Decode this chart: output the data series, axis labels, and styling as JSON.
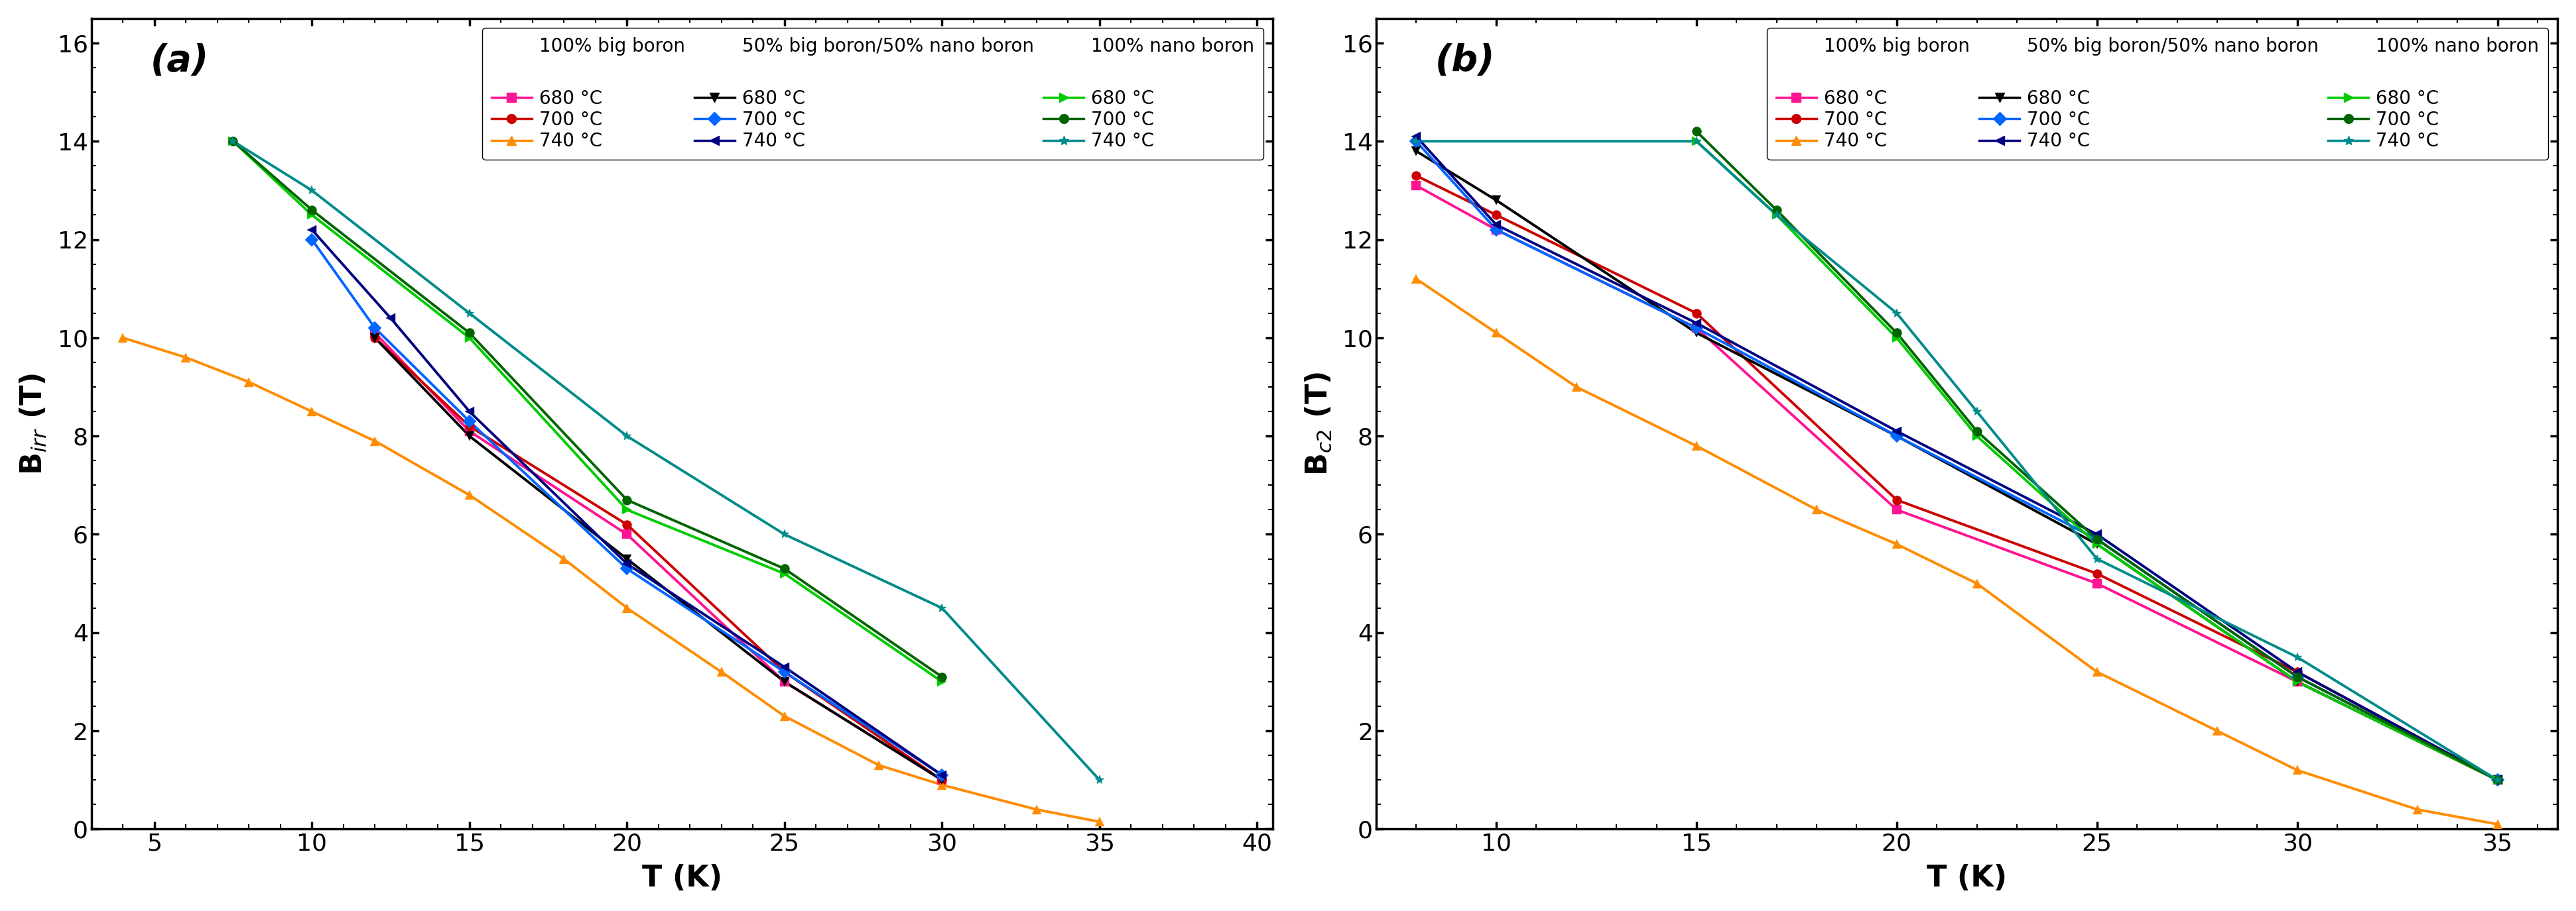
{
  "panel_a": {
    "ylabel": "B$_{irr}$ (T)",
    "xlabel": "T (K)",
    "xlim": [
      3.0,
      40.5
    ],
    "ylim": [
      0,
      16.5
    ],
    "xticks": [
      5,
      10,
      15,
      20,
      25,
      30,
      35,
      40
    ],
    "yticks": [
      0,
      2,
      4,
      6,
      8,
      10,
      12,
      14,
      16
    ],
    "label": "(a)",
    "series": [
      {
        "name": "big_680",
        "color": "#FF1493",
        "marker": "s",
        "T": [
          12.0,
          15.0,
          20.0,
          25.0,
          30.0
        ],
        "B": [
          10.1,
          8.1,
          6.0,
          3.0,
          1.0
        ]
      },
      {
        "name": "big_700",
        "color": "#CC0000",
        "marker": "o",
        "T": [
          12.0,
          15.0,
          20.0,
          25.0,
          30.0
        ],
        "B": [
          10.0,
          8.2,
          6.2,
          3.2,
          1.0
        ]
      },
      {
        "name": "big_740",
        "color": "#FF8C00",
        "marker": "^",
        "T": [
          4.0,
          6.0,
          8.0,
          10.0,
          12.0,
          15.0,
          18.0,
          20.0,
          23.0,
          25.0,
          28.0,
          30.0,
          33.0,
          35.0
        ],
        "B": [
          10.0,
          9.6,
          9.1,
          8.5,
          7.9,
          6.8,
          5.5,
          4.5,
          3.2,
          2.3,
          1.3,
          0.9,
          0.4,
          0.15
        ]
      },
      {
        "name": "mix_680",
        "color": "#000000",
        "marker": "v",
        "T": [
          12.0,
          15.0,
          20.0,
          25.0,
          30.0
        ],
        "B": [
          10.0,
          8.0,
          5.5,
          3.0,
          1.0
        ]
      },
      {
        "name": "mix_700",
        "color": "#0066FF",
        "marker": "D",
        "T": [
          10.0,
          12.0,
          15.0,
          20.0,
          25.0,
          30.0
        ],
        "B": [
          12.0,
          10.2,
          8.3,
          5.3,
          3.2,
          1.1
        ]
      },
      {
        "name": "mix_740",
        "color": "#000080",
        "marker": "<",
        "T": [
          10.0,
          12.5,
          15.0,
          20.0,
          25.0,
          30.0
        ],
        "B": [
          12.2,
          10.4,
          8.5,
          5.4,
          3.3,
          1.1
        ]
      },
      {
        "name": "nano_680",
        "color": "#00CC00",
        "marker": ">",
        "T": [
          7.5,
          10.0,
          15.0,
          20.0,
          25.0,
          30.0
        ],
        "B": [
          14.0,
          12.5,
          10.0,
          6.5,
          5.2,
          3.0
        ]
      },
      {
        "name": "nano_700",
        "color": "#006400",
        "marker": "o",
        "T": [
          7.5,
          10.0,
          15.0,
          20.0,
          25.0,
          30.0
        ],
        "B": [
          14.0,
          12.6,
          10.1,
          6.7,
          5.3,
          3.1
        ]
      },
      {
        "name": "nano_740",
        "color": "#008B8B",
        "marker": "*",
        "T": [
          7.5,
          10.0,
          15.0,
          20.0,
          25.0,
          30.0,
          35.0
        ],
        "B": [
          14.0,
          13.0,
          10.5,
          8.0,
          6.0,
          4.5,
          1.0
        ]
      }
    ]
  },
  "panel_b": {
    "ylabel": "B$_{c2}$ (T)",
    "xlabel": "T (K)",
    "xlim": [
      7.0,
      36.5
    ],
    "ylim": [
      0,
      16.5
    ],
    "xticks": [
      10,
      15,
      20,
      25,
      30,
      35
    ],
    "yticks": [
      0,
      2,
      4,
      6,
      8,
      10,
      12,
      14,
      16
    ],
    "label": "(b)",
    "series": [
      {
        "name": "big_680",
        "color": "#FF1493",
        "marker": "s",
        "T": [
          8.0,
          10.0,
          15.0,
          20.0,
          25.0,
          30.0,
          35.0
        ],
        "B": [
          13.1,
          12.2,
          10.2,
          6.5,
          5.0,
          3.0,
          1.0
        ]
      },
      {
        "name": "big_700",
        "color": "#CC0000",
        "marker": "o",
        "T": [
          8.0,
          10.0,
          15.0,
          20.0,
          25.0,
          30.0,
          35.0
        ],
        "B": [
          13.3,
          12.5,
          10.5,
          6.7,
          5.2,
          3.2,
          1.0
        ]
      },
      {
        "name": "big_740",
        "color": "#FF8C00",
        "marker": "^",
        "T": [
          8.0,
          10.0,
          12.0,
          15.0,
          18.0,
          20.0,
          22.0,
          25.0,
          28.0,
          30.0,
          33.0,
          35.0
        ],
        "B": [
          11.2,
          10.1,
          9.0,
          7.8,
          6.5,
          5.8,
          5.0,
          3.2,
          2.0,
          1.2,
          0.4,
          0.1
        ]
      },
      {
        "name": "mix_680",
        "color": "#000000",
        "marker": "v",
        "T": [
          8.0,
          10.0,
          15.0,
          20.0,
          25.0,
          30.0,
          35.0
        ],
        "B": [
          13.8,
          12.8,
          10.1,
          8.0,
          5.8,
          3.0,
          1.0
        ]
      },
      {
        "name": "mix_700",
        "color": "#0066FF",
        "marker": "D",
        "T": [
          8.0,
          10.0,
          15.0,
          20.0,
          25.0,
          30.0,
          35.0
        ],
        "B": [
          14.0,
          12.2,
          10.2,
          8.0,
          5.9,
          3.1,
          1.0
        ]
      },
      {
        "name": "mix_740",
        "color": "#000080",
        "marker": "<",
        "T": [
          8.0,
          10.0,
          15.0,
          20.0,
          25.0,
          30.0,
          35.0
        ],
        "B": [
          14.1,
          12.3,
          10.3,
          8.1,
          6.0,
          3.2,
          1.0
        ]
      },
      {
        "name": "nano_680",
        "color": "#00CC00",
        "marker": ">",
        "T": [
          15.0,
          17.0,
          20.0,
          22.0,
          25.0,
          30.0,
          35.0
        ],
        "B": [
          14.0,
          12.5,
          10.0,
          8.0,
          5.8,
          3.0,
          1.0
        ]
      },
      {
        "name": "nano_700",
        "color": "#006400",
        "marker": "o",
        "T": [
          15.0,
          17.0,
          20.0,
          22.0,
          25.0,
          30.0,
          35.0
        ],
        "B": [
          14.2,
          12.6,
          10.1,
          8.1,
          5.9,
          3.1,
          1.0
        ]
      },
      {
        "name": "nano_740",
        "color": "#008B8B",
        "marker": "*",
        "T": [
          8.0,
          15.0,
          17.0,
          20.0,
          22.0,
          25.0,
          30.0,
          35.0
        ],
        "B": [
          14.0,
          14.0,
          12.5,
          10.5,
          8.5,
          5.5,
          3.5,
          1.0
        ]
      }
    ]
  },
  "big_colors": [
    "#FF1493",
    "#CC0000",
    "#FF8C00"
  ],
  "big_markers": [
    "s",
    "o",
    "^"
  ],
  "mix_colors": [
    "#000000",
    "#0066FF",
    "#000080"
  ],
  "mix_markers": [
    "v",
    "D",
    "<"
  ],
  "nano_colors": [
    "#00CC00",
    "#006400",
    "#008B8B"
  ],
  "nano_markers": [
    ">",
    "o",
    "*"
  ],
  "legend_temps": [
    "680 °C",
    "700 °C",
    "740 °C"
  ],
  "group_titles": [
    "100% big boron",
    "50% big boron/50% nano boron",
    "100% nano boron"
  ]
}
